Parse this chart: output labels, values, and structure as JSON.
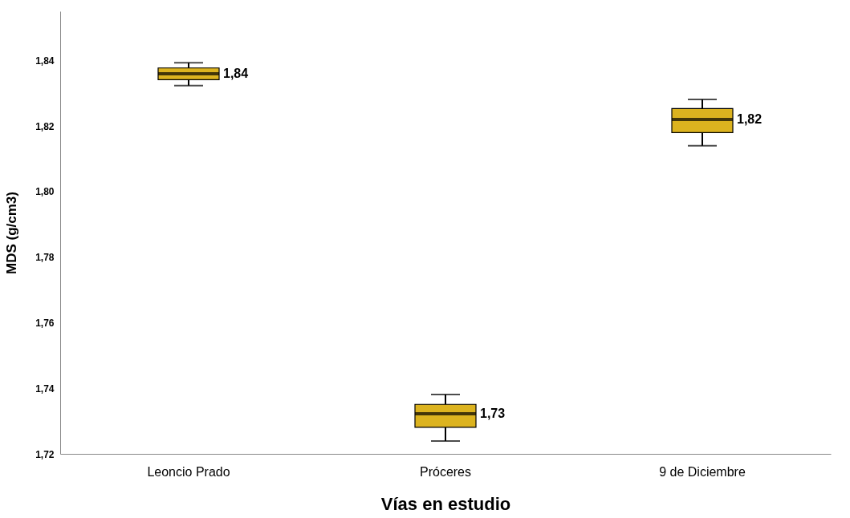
{
  "chart_data": {
    "type": "box",
    "xlabel": "Vías en estudio",
    "ylabel": "MDS (g/cm3)",
    "categories": [
      "Leoncio Prado",
      "Próceres",
      "9 de Diciembre"
    ],
    "series": [
      {
        "color": "#dcb31f",
        "boxes": [
          {
            "low": 1.8323,
            "q1": 1.8341,
            "median": 1.8359,
            "q3": 1.8377,
            "high": 1.8393
          },
          {
            "low": 1.7239,
            "q1": 1.7281,
            "median": 1.7322,
            "q3": 1.7351,
            "high": 1.7381
          },
          {
            "low": 1.814,
            "q1": 1.818,
            "median": 1.822,
            "q3": 1.8253,
            "high": 1.8281
          }
        ]
      }
    ],
    "value_labels": [
      "1,84",
      "1,73",
      "1,82"
    ],
    "ylim": [
      1.72,
      1.855
    ],
    "yticks": [
      {
        "value": 1.72,
        "label": "1,72"
      },
      {
        "value": 1.74,
        "label": "1,74"
      },
      {
        "value": 1.76,
        "label": "1,76"
      },
      {
        "value": 1.78,
        "label": "1,78"
      },
      {
        "value": 1.8,
        "label": "1,80"
      },
      {
        "value": 1.82,
        "label": "1,82"
      },
      {
        "value": 1.84,
        "label": "1,84"
      }
    ],
    "grid": false
  }
}
